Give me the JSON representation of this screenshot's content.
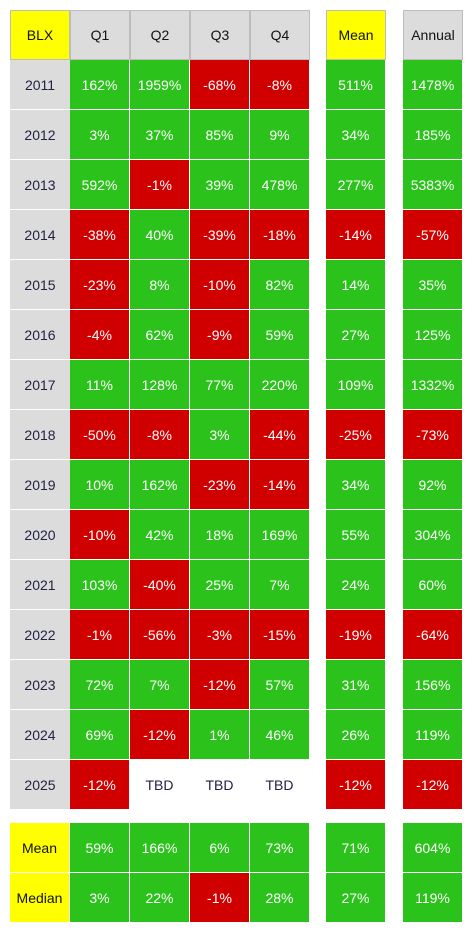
{
  "chart_data": {
    "type": "table",
    "title": "BLX",
    "columns": [
      "Q1",
      "Q2",
      "Q3",
      "Q4"
    ],
    "mean_label": "Mean",
    "annual_label": "Annual",
    "rows": [
      {
        "year": "2011",
        "q": [
          "162%",
          "1959%",
          "-68%",
          "-8%"
        ],
        "mean": "511%",
        "annual": "1478%"
      },
      {
        "year": "2012",
        "q": [
          "3%",
          "37%",
          "85%",
          "9%"
        ],
        "mean": "34%",
        "annual": "185%"
      },
      {
        "year": "2013",
        "q": [
          "592%",
          "-1%",
          "39%",
          "478%"
        ],
        "mean": "277%",
        "annual": "5383%"
      },
      {
        "year": "2014",
        "q": [
          "-38%",
          "40%",
          "-39%",
          "-18%"
        ],
        "mean": "-14%",
        "annual": "-57%"
      },
      {
        "year": "2015",
        "q": [
          "-23%",
          "8%",
          "-10%",
          "82%"
        ],
        "mean": "14%",
        "annual": "35%"
      },
      {
        "year": "2016",
        "q": [
          "-4%",
          "62%",
          "-9%",
          "59%"
        ],
        "mean": "27%",
        "annual": "125%"
      },
      {
        "year": "2017",
        "q": [
          "11%",
          "128%",
          "77%",
          "220%"
        ],
        "mean": "109%",
        "annual": "1332%"
      },
      {
        "year": "2018",
        "q": [
          "-50%",
          "-8%",
          "3%",
          "-44%"
        ],
        "mean": "-25%",
        "annual": "-73%"
      },
      {
        "year": "2019",
        "q": [
          "10%",
          "162%",
          "-23%",
          "-14%"
        ],
        "mean": "34%",
        "annual": "92%"
      },
      {
        "year": "2020",
        "q": [
          "-10%",
          "42%",
          "18%",
          "169%"
        ],
        "mean": "55%",
        "annual": "304%"
      },
      {
        "year": "2021",
        "q": [
          "103%",
          "-40%",
          "25%",
          "7%"
        ],
        "mean": "24%",
        "annual": "60%"
      },
      {
        "year": "2022",
        "q": [
          "-1%",
          "-56%",
          "-3%",
          "-15%"
        ],
        "mean": "-19%",
        "annual": "-64%"
      },
      {
        "year": "2023",
        "q": [
          "72%",
          "7%",
          "-12%",
          "57%"
        ],
        "mean": "31%",
        "annual": "156%"
      },
      {
        "year": "2024",
        "q": [
          "69%",
          "-12%",
          "1%",
          "46%"
        ],
        "mean": "26%",
        "annual": "119%"
      },
      {
        "year": "2025",
        "q": [
          "-12%",
          "TBD",
          "TBD",
          "TBD"
        ],
        "mean": "-12%",
        "annual": "-12%"
      }
    ],
    "summary": [
      {
        "label": "Mean",
        "q": [
          "59%",
          "166%",
          "6%",
          "73%"
        ],
        "mean": "71%",
        "annual": "604%"
      },
      {
        "label": "Median",
        "q": [
          "3%",
          "22%",
          "-1%",
          "28%"
        ],
        "mean": "27%",
        "annual": "119%"
      }
    ],
    "colors": {
      "positive": "#2cc21c",
      "negative": "#d10000",
      "header_yellow": "#ffff00",
      "header_gray": "#dcdcdc"
    }
  }
}
